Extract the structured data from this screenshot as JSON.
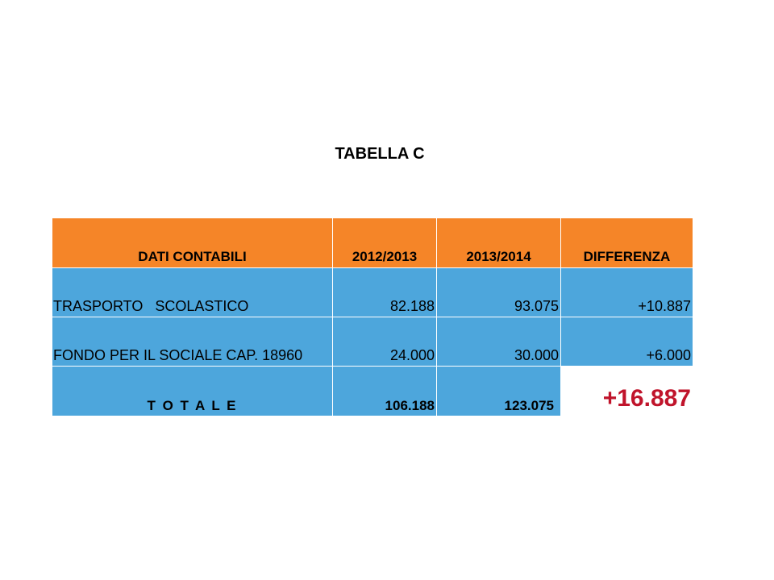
{
  "title": "TABELLA C",
  "table": {
    "headers": [
      "DATI CONTABILI",
      "2012/2013",
      "2013/2014",
      "DIFFERENZA"
    ],
    "rows": [
      [
        "TRASPORTO   SCOLASTICO",
        "82.188",
        "93.075",
        "+10.887"
      ],
      [
        "FONDO PER IL SOCIALE CAP. 18960",
        "24.000",
        "30.000",
        "+6.000"
      ]
    ],
    "total": [
      "T O T A L E",
      "106.188",
      "123.075",
      "+16.887"
    ]
  },
  "colors": {
    "header_bg": "#f58528",
    "body_bg": "#4da6dc",
    "total_diff": "#c0142b"
  }
}
